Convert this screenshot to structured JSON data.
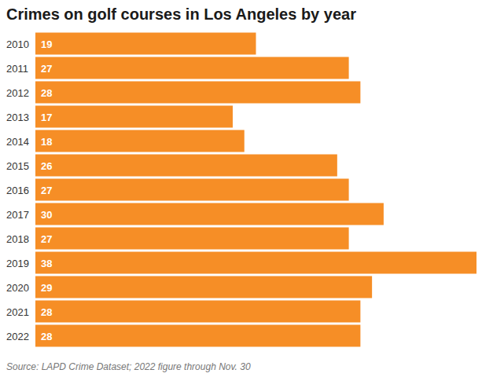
{
  "chart_data": {
    "type": "bar",
    "orientation": "horizontal",
    "title": "Crimes on golf courses in Los Angeles by year",
    "annotations": [
      "Source: LAPD Crime Dataset; 2022 figure through Nov. 30"
    ],
    "categories": [
      "2010",
      "2011",
      "2012",
      "2013",
      "2014",
      "2015",
      "2016",
      "2017",
      "2018",
      "2019",
      "2020",
      "2021",
      "2022"
    ],
    "values": [
      19,
      27,
      28,
      17,
      18,
      26,
      27,
      30,
      27,
      38,
      29,
      28,
      28
    ],
    "color": "#f68e26",
    "xlim": [
      0,
      38
    ],
    "data_labels": true,
    "tick_labels": "y",
    "grid": false
  }
}
